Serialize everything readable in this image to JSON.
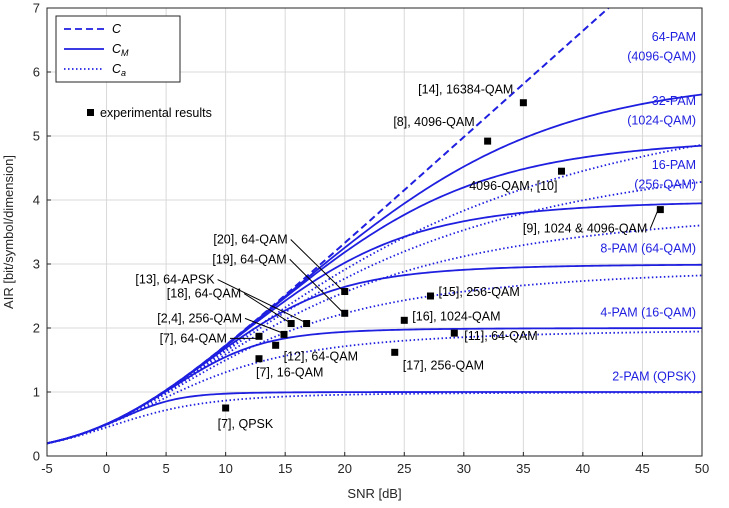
{
  "chart_data": {
    "type": "line",
    "xlabel": "SNR [dB]",
    "ylabel": "AIR  [bit/symbol/dimension]",
    "xlim": [
      -5,
      50
    ],
    "ylim": [
      0,
      7
    ],
    "xticks": [
      -5,
      0,
      5,
      10,
      15,
      20,
      25,
      30,
      35,
      40,
      45,
      50
    ],
    "yticks": [
      0,
      1,
      2,
      3,
      4,
      5,
      6,
      7
    ],
    "grid": true,
    "legend_position": "top-left",
    "colors": {
      "curves": "#1f1fe0",
      "markers": "#000000",
      "grid": "#d9d9d9"
    },
    "legend": [
      {
        "key": "C",
        "label": "C",
        "style": "dashed"
      },
      {
        "key": "C_M",
        "label": "C",
        "sub": "M",
        "style": "solid"
      },
      {
        "key": "C_a",
        "label": "C",
        "sub": "a",
        "style": "dotted"
      },
      {
        "key": "exp",
        "label": "experimental results",
        "style": "square"
      }
    ],
    "pam_orders": [
      2,
      4,
      8,
      16,
      32,
      64
    ],
    "curve_labels": [
      {
        "lines": [
          "2-PAM (QPSK)"
        ],
        "x": 49.5,
        "y": 1.15
      },
      {
        "lines": [
          "4-PAM (16-QAM)"
        ],
        "x": 49.5,
        "y": 2.15
      },
      {
        "lines": [
          "8-PAM (64-QAM)"
        ],
        "x": 49.5,
        "y": 3.15
      },
      {
        "lines": [
          "16-PAM",
          "(256-QAM)"
        ],
        "x": 49.5,
        "y": 4.45,
        "y2": 4.15
      },
      {
        "lines": [
          "32-PAM",
          "(1024-QAM)"
        ],
        "x": 49.5,
        "y": 5.45,
        "y2": 5.15
      },
      {
        "lines": [
          "64-PAM",
          "(4096-QAM)"
        ],
        "x": 49.5,
        "y": 6.45,
        "y2": 6.15
      }
    ],
    "experimental_points": [
      {
        "x": 10,
        "y": 0.75,
        "label": "[7], QPSK"
      },
      {
        "x": 12.8,
        "y": 1.52,
        "label": "[7], 16-QAM"
      },
      {
        "x": 12.8,
        "y": 1.87,
        "label": "[7], 64-QAM"
      },
      {
        "x": 14.2,
        "y": 1.73,
        "label": "[12], 64-QAM"
      },
      {
        "x": 14.9,
        "y": 1.9,
        "label": "[2,4], 256-QAM"
      },
      {
        "x": 15.5,
        "y": 2.07,
        "label": "[18], 64-QAM"
      },
      {
        "x": 16.8,
        "y": 2.07,
        "label": "[13], 64-APSK"
      },
      {
        "x": 20,
        "y": 2.23,
        "label": "[19], 64-QAM"
      },
      {
        "x": 20,
        "y": 2.57,
        "label": "[20], 64-QAM"
      },
      {
        "x": 24.2,
        "y": 1.62,
        "label": "[17], 256-QAM"
      },
      {
        "x": 25,
        "y": 2.12,
        "label": "[16], 1024-QAM"
      },
      {
        "x": 27.2,
        "y": 2.5,
        "label": "[15], 256-QAM"
      },
      {
        "x": 29.2,
        "y": 1.92,
        "label": "[11], 64-QAM"
      },
      {
        "x": 32,
        "y": 4.92,
        "label": "[8], 4096-QAM"
      },
      {
        "x": 35,
        "y": 5.52,
        "label": "[14], 16384-QAM"
      },
      {
        "x": 38.2,
        "y": 4.45,
        "label": "4096-QAM, [10]"
      },
      {
        "x": 46.5,
        "y": 3.85,
        "label": "[9], 1024 & 4096-QAM"
      }
    ]
  }
}
